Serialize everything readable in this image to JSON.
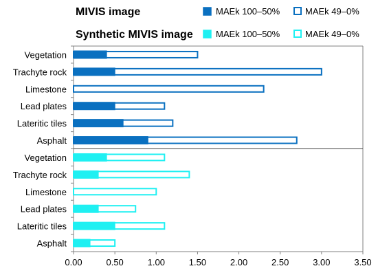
{
  "legend": {
    "group1_title": "MIVIS image",
    "group2_title": "Synthetic MIVIS image",
    "high_label": "MAEk 100–50%",
    "low_label": "MAEk 49–0%"
  },
  "colors": {
    "mivis": "#0a70c0",
    "synthetic": "#1ff0f2",
    "axis": "#808080",
    "divider": "#404040"
  },
  "chart_data": {
    "type": "bar",
    "orientation": "horizontal",
    "stacked": true,
    "xlim": [
      0,
      3.5
    ],
    "x_ticks": [
      "0.00",
      "0.50",
      "1.00",
      "1.50",
      "2.00",
      "2.50",
      "3.00",
      "3.50"
    ],
    "groups": [
      {
        "name": "MIVIS image",
        "categories": [
          "Vegetation",
          "Trachyte rock",
          "Limestone",
          "Lead plates",
          "Lateritic tiles",
          "Asphalt"
        ],
        "series": [
          {
            "name": "MAEk 100–50%",
            "values": [
              0.4,
              0.5,
              0.0,
              0.5,
              0.6,
              0.9
            ]
          },
          {
            "name": "MAEk 49–0%",
            "values": [
              1.1,
              2.5,
              2.3,
              0.6,
              0.6,
              1.8
            ]
          }
        ]
      },
      {
        "name": "Synthetic MIVIS image",
        "categories": [
          "Vegetation",
          "Trachyte rock",
          "Limestone",
          "Lead plates",
          "Lateritic tiles",
          "Asphalt"
        ],
        "series": [
          {
            "name": "MAEk 100–50%",
            "values": [
              0.4,
              0.3,
              0.0,
              0.3,
              0.5,
              0.2
            ]
          },
          {
            "name": "MAEk 49–0%",
            "values": [
              0.7,
              1.1,
              1.0,
              0.45,
              0.6,
              0.3
            ]
          }
        ]
      }
    ]
  }
}
